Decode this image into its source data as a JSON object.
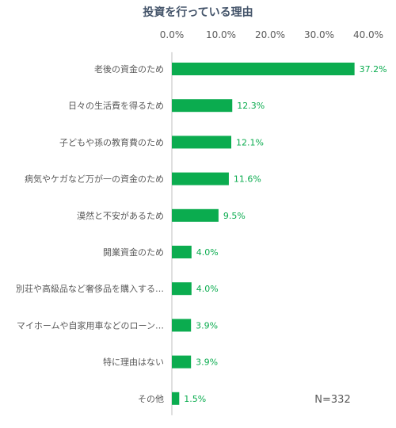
{
  "chart_data": {
    "type": "bar",
    "orientation": "horizontal",
    "title": "投資を行っている理由",
    "categories": [
      "老後の資金のため",
      "日々の生活費を得るため",
      "子どもや孫の教育費のため",
      "病気やケガなど万が一の資金のため",
      "漠然と不安があるため",
      "開業資金のため",
      "別荘や高級品など奢侈品を購入する…",
      "マイホームや自家用車などのローン…",
      "特に理由はない",
      "その他"
    ],
    "values": [
      37.2,
      12.3,
      12.1,
      11.6,
      9.5,
      4.0,
      4.0,
      3.9,
      3.9,
      1.5
    ],
    "value_labels": [
      "37.2%",
      "12.3%",
      "12.1%",
      "11.6%",
      "9.5%",
      "4.0%",
      "4.0%",
      "3.9%",
      "3.9%",
      "1.5%"
    ],
    "xlim": [
      0,
      40
    ],
    "x_ticks": [
      0,
      10,
      20,
      30,
      40
    ],
    "x_tick_labels": [
      "0.0%",
      "10.0%",
      "20.0%",
      "30.0%",
      "40.0%"
    ],
    "x_axis_position": "top",
    "grid": false,
    "annotation": "N=332",
    "colors": {
      "bar": "#0bac4f",
      "value_label": "#0bac4f",
      "title": "#44546a",
      "tick_label": "#5a5a5a",
      "category_label": "#5a5a5a",
      "annotation": "#5a5a5a",
      "axis_line": "#bfbfbf"
    }
  }
}
